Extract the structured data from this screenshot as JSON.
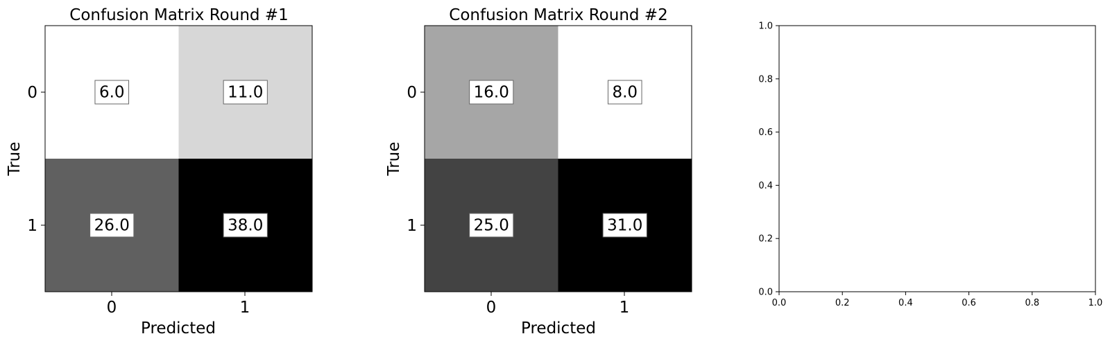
{
  "chart_data": [
    {
      "type": "heatmap",
      "title": "Confusion Matrix Round #1",
      "xlabel": "Predicted",
      "ylabel": "True",
      "x_categories": [
        "0",
        "1"
      ],
      "y_categories": [
        "0",
        "1"
      ],
      "values": [
        [
          6.0,
          11.0
        ],
        [
          26.0,
          38.0
        ]
      ],
      "value_labels": [
        [
          "6.0",
          "11.0"
        ],
        [
          "26.0",
          "38.0"
        ]
      ],
      "colormap": "Greys",
      "grid": false
    },
    {
      "type": "heatmap",
      "title": "Confusion Matrix Round #2",
      "xlabel": "Predicted",
      "ylabel": "True",
      "x_categories": [
        "0",
        "1"
      ],
      "y_categories": [
        "0",
        "1"
      ],
      "values": [
        [
          16.0,
          8.0
        ],
        [
          25.0,
          31.0
        ]
      ],
      "value_labels": [
        [
          "16.0",
          "8.0"
        ],
        [
          "25.0",
          "31.0"
        ]
      ],
      "colormap": "Greys",
      "grid": false
    },
    {
      "type": "line",
      "title": "",
      "xlabel": "",
      "ylabel": "",
      "x": [],
      "series": [],
      "xlim": [
        0.0,
        1.0
      ],
      "ylim": [
        0.0,
        1.0
      ],
      "x_ticks": [
        "0.0",
        "0.2",
        "0.4",
        "0.6",
        "0.8",
        "1.0"
      ],
      "y_ticks": [
        "0.0",
        "0.2",
        "0.4",
        "0.6",
        "0.8",
        "1.0"
      ],
      "grid": false
    }
  ]
}
